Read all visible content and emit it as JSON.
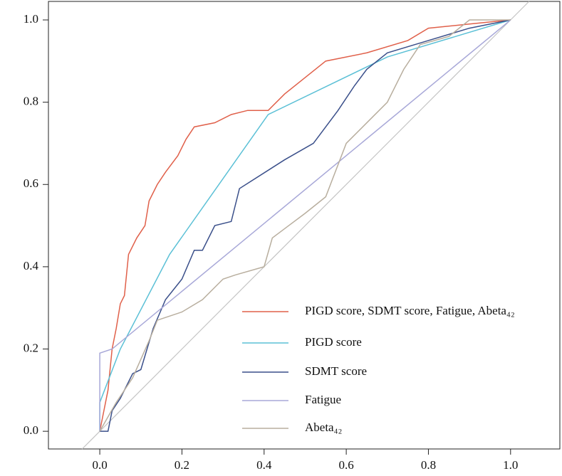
{
  "chart_data": {
    "type": "line",
    "xlim": [
      -0.125,
      1.12
    ],
    "ylim": [
      -0.043,
      1.045
    ],
    "xticks": [
      {
        "value": 0,
        "label": "0.0"
      },
      0.2,
      0.4,
      0.6,
      0.8,
      {
        "value": 1,
        "label": "1.0"
      }
    ],
    "yticks": [
      {
        "value": 0,
        "label": "0.0"
      },
      0.2,
      0.4,
      0.6,
      0.8,
      {
        "value": 1,
        "label": "1.0"
      }
    ],
    "legend": "lower right",
    "series": [
      {
        "name": "PIGD score, SDMT score, Fatigue, Abeta₄₂",
        "color": "#e0604a",
        "x": [
          0,
          0.01,
          0.02,
          0.03,
          0.04,
          0.05,
          0.06,
          0.07,
          0.09,
          0.11,
          0.12,
          0.14,
          0.16,
          0.19,
          0.21,
          0.23,
          0.28,
          0.32,
          0.36,
          0.41,
          0.45,
          0.5,
          0.55,
          0.65,
          0.75,
          0.8,
          0.9,
          1
        ],
        "values": [
          0,
          0.05,
          0.1,
          0.2,
          0.25,
          0.31,
          0.33,
          0.43,
          0.47,
          0.5,
          0.56,
          0.6,
          0.63,
          0.67,
          0.71,
          0.74,
          0.75,
          0.77,
          0.78,
          0.78,
          0.82,
          0.86,
          0.9,
          0.92,
          0.95,
          0.98,
          0.99,
          1
        ]
      },
      {
        "name": "PIGD score",
        "color": "#5bc0d6",
        "x": [
          0,
          0,
          0.05,
          0.17,
          0.41,
          0.7,
          1
        ],
        "values": [
          0,
          0.07,
          0.2,
          0.43,
          0.77,
          0.91,
          1
        ]
      },
      {
        "name": "SDMT score",
        "color": "#3a4f8a",
        "x": [
          0,
          0.02,
          0.03,
          0.05,
          0.08,
          0.1,
          0.13,
          0.16,
          0.2,
          0.23,
          0.25,
          0.28,
          0.32,
          0.34,
          0.45,
          0.52,
          0.58,
          0.62,
          0.65,
          0.7,
          0.8,
          0.9,
          1
        ],
        "values": [
          0,
          0,
          0.05,
          0.08,
          0.14,
          0.15,
          0.25,
          0.32,
          0.37,
          0.44,
          0.44,
          0.5,
          0.51,
          0.59,
          0.66,
          0.7,
          0.78,
          0.84,
          0.88,
          0.92,
          0.95,
          0.98,
          1
        ]
      },
      {
        "name": "Fatigue",
        "color": "#a8a8d8",
        "x": [
          0,
          0,
          0.03,
          1
        ],
        "values": [
          0,
          0.19,
          0.2,
          1
        ]
      },
      {
        "name": "Abeta₄₂",
        "color": "#b8ae9e",
        "x": [
          0,
          0.04,
          0.08,
          0.12,
          0.14,
          0.2,
          0.25,
          0.3,
          0.33,
          0.4,
          0.42,
          0.46,
          0.5,
          0.55,
          0.6,
          0.65,
          0.7,
          0.74,
          0.78,
          0.85,
          0.9,
          1
        ],
        "values": [
          0,
          0.07,
          0.13,
          0.22,
          0.27,
          0.29,
          0.32,
          0.37,
          0.38,
          0.4,
          0.47,
          0.5,
          0.53,
          0.57,
          0.7,
          0.75,
          0.8,
          0.88,
          0.94,
          0.96,
          1,
          1
        ]
      }
    ]
  }
}
